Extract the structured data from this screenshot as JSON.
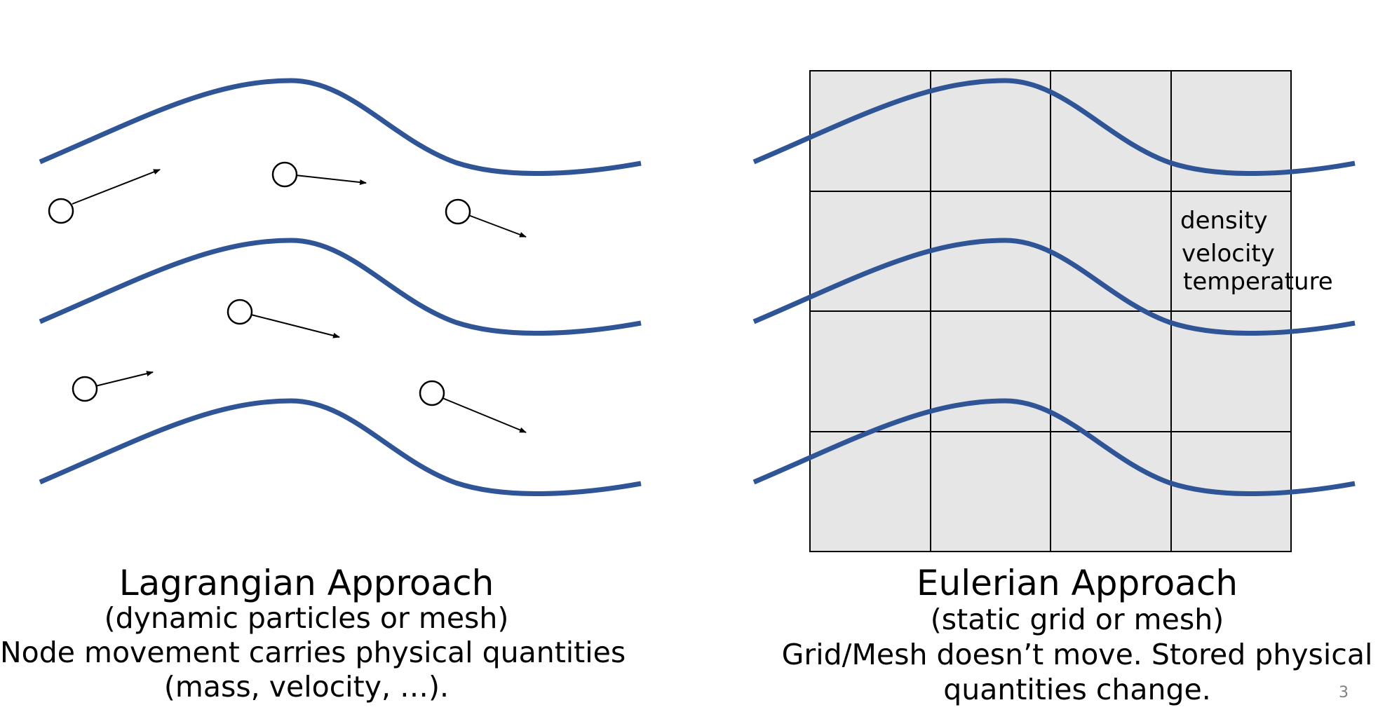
{
  "lagrangian": {
    "title": "Lagrangian Approach",
    "subtitle": "(dynamic particles or mesh)",
    "desc_line1": "Node movement carries physical quantities",
    "desc_line2": "(mass, velocity, …)."
  },
  "eulerian": {
    "title": "Eulerian Approach",
    "subtitle": "(static grid or mesh)",
    "desc_line1": "Grid/Mesh doesn’t move.  Stored physical",
    "desc_line2": "quantities change.",
    "cell_labels": [
      "density",
      "velocity",
      "temperature"
    ]
  },
  "page_number": "3",
  "colors": {
    "streamline": "#2f5597",
    "grid_fill": "#e6e6e6",
    "grid_line": "#000000",
    "page_number": "#808080"
  }
}
